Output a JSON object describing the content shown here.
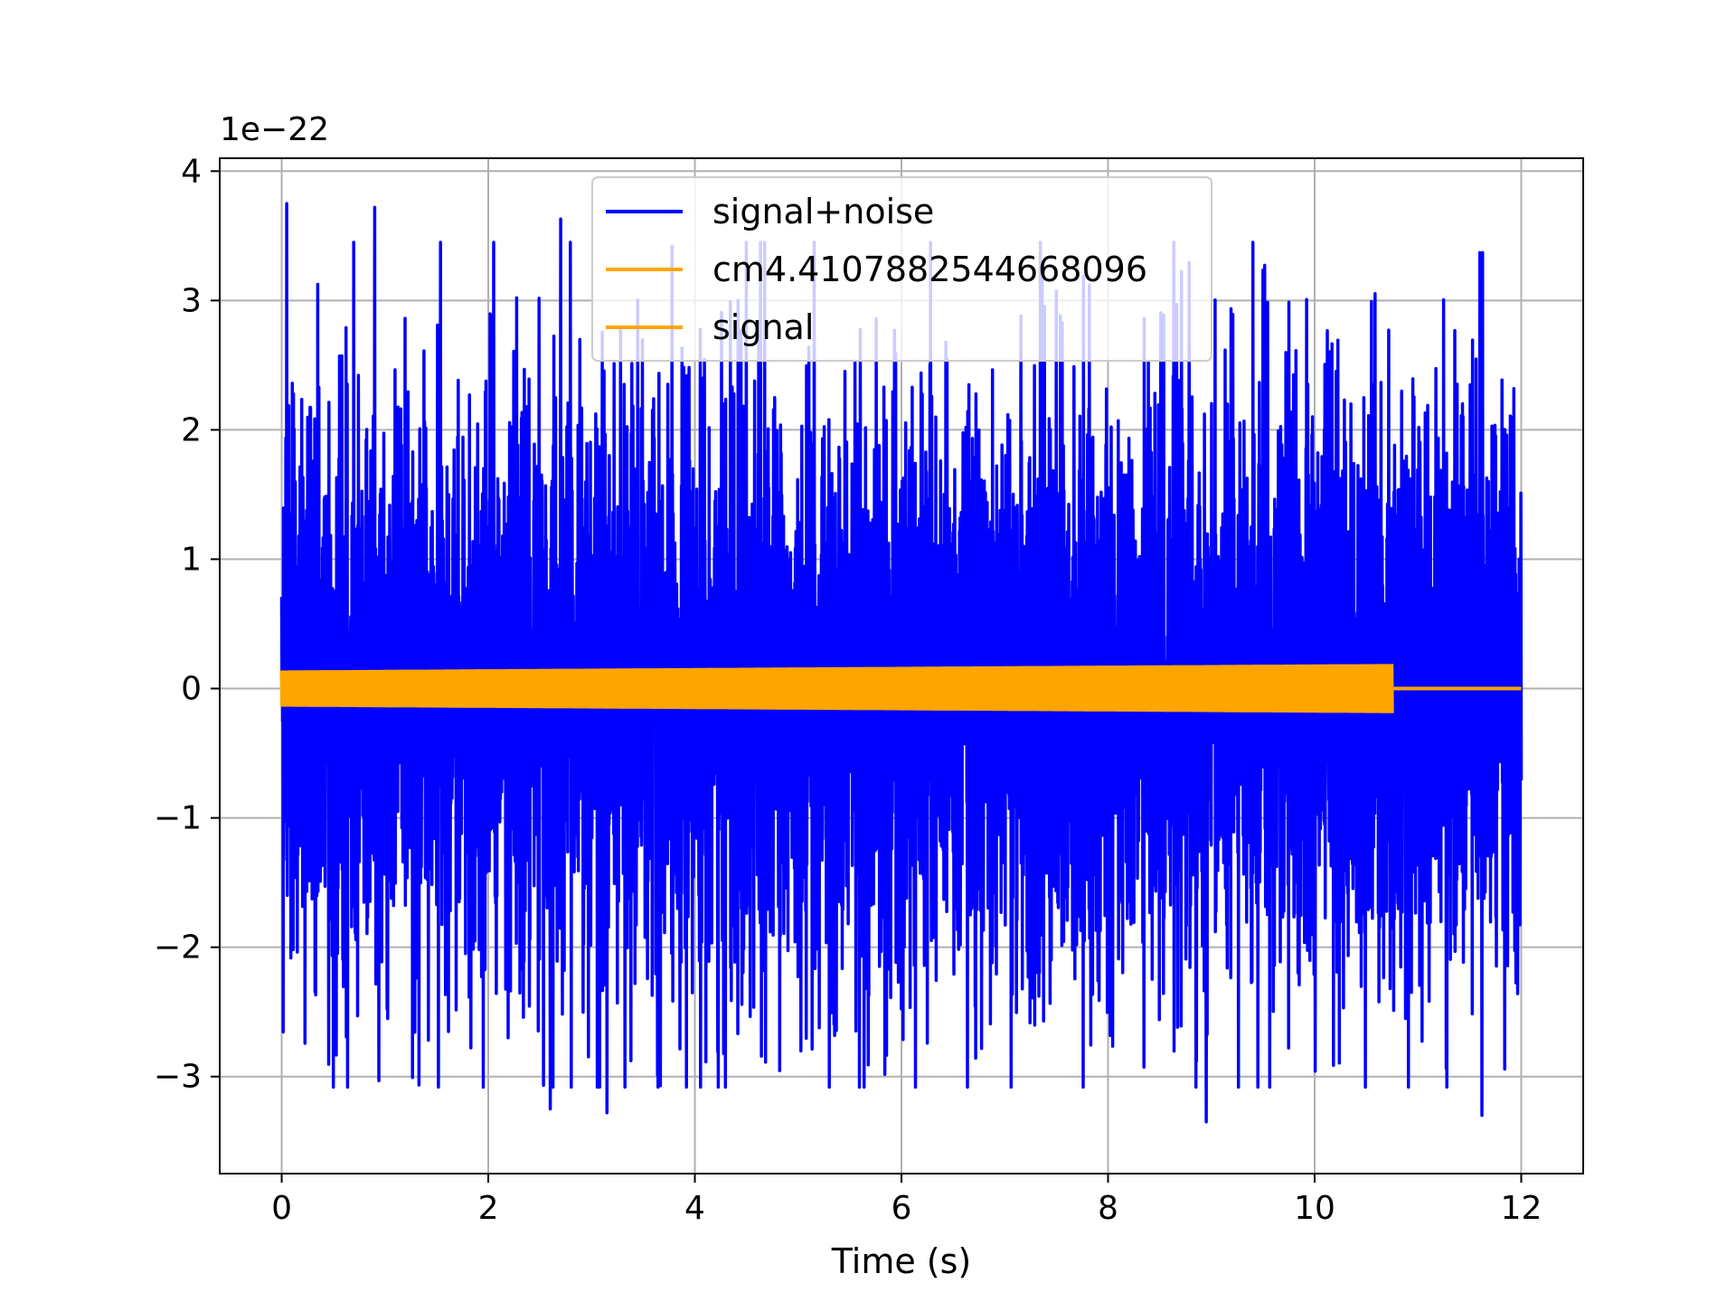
{
  "chart_data": {
    "type": "line",
    "title": "",
    "xlabel": "Time (s)",
    "ylabel": "",
    "y_offset_label": "1e−22",
    "xlim": [
      -0.6,
      12.6
    ],
    "ylim": [
      -3.75,
      4.1
    ],
    "x_ticks": [
      0,
      2,
      4,
      6,
      8,
      10,
      12
    ],
    "x_tick_labels": [
      "0",
      "2",
      "4",
      "6",
      "8",
      "10",
      "12"
    ],
    "y_ticks": [
      -3,
      -2,
      -1,
      0,
      1,
      2,
      3,
      4
    ],
    "y_tick_labels": [
      "−3",
      "−2",
      "−1",
      "0",
      "1",
      "2",
      "3",
      "4"
    ],
    "grid": true,
    "legend_position": "top-center",
    "series": [
      {
        "name": "signal+noise",
        "color": "#0000ff",
        "kind": "noise",
        "x_start": 0,
        "x_end": 12.0,
        "typical_amplitude": 1.6,
        "peak_amplitude_pos": 3.75,
        "peak_amplitude_neg": -3.35,
        "notable_peaks": [
          {
            "x": 0.05,
            "y": 3.75
          },
          {
            "x": 0.9,
            "y": 3.72
          },
          {
            "x": 2.7,
            "y": 3.63
          },
          {
            "x": 11.6,
            "y": 3.37
          },
          {
            "x": 8.95,
            "y": -3.35
          },
          {
            "x": 11.62,
            "y": -3.3
          },
          {
            "x": 3.15,
            "y": -3.28
          },
          {
            "x": 2.6,
            "y": -3.25
          }
        ]
      },
      {
        "name": "cm4.4107882544668096",
        "color": "#ffa500",
        "kind": "chirp",
        "x_start": 0,
        "x_end": 10.75,
        "amplitude_start": 0.14,
        "amplitude_end": 0.19
      },
      {
        "name": "signal",
        "color": "#ffa500",
        "kind": "flat",
        "x_start": 10.75,
        "x_end": 12.0,
        "value": 0
      }
    ]
  }
}
